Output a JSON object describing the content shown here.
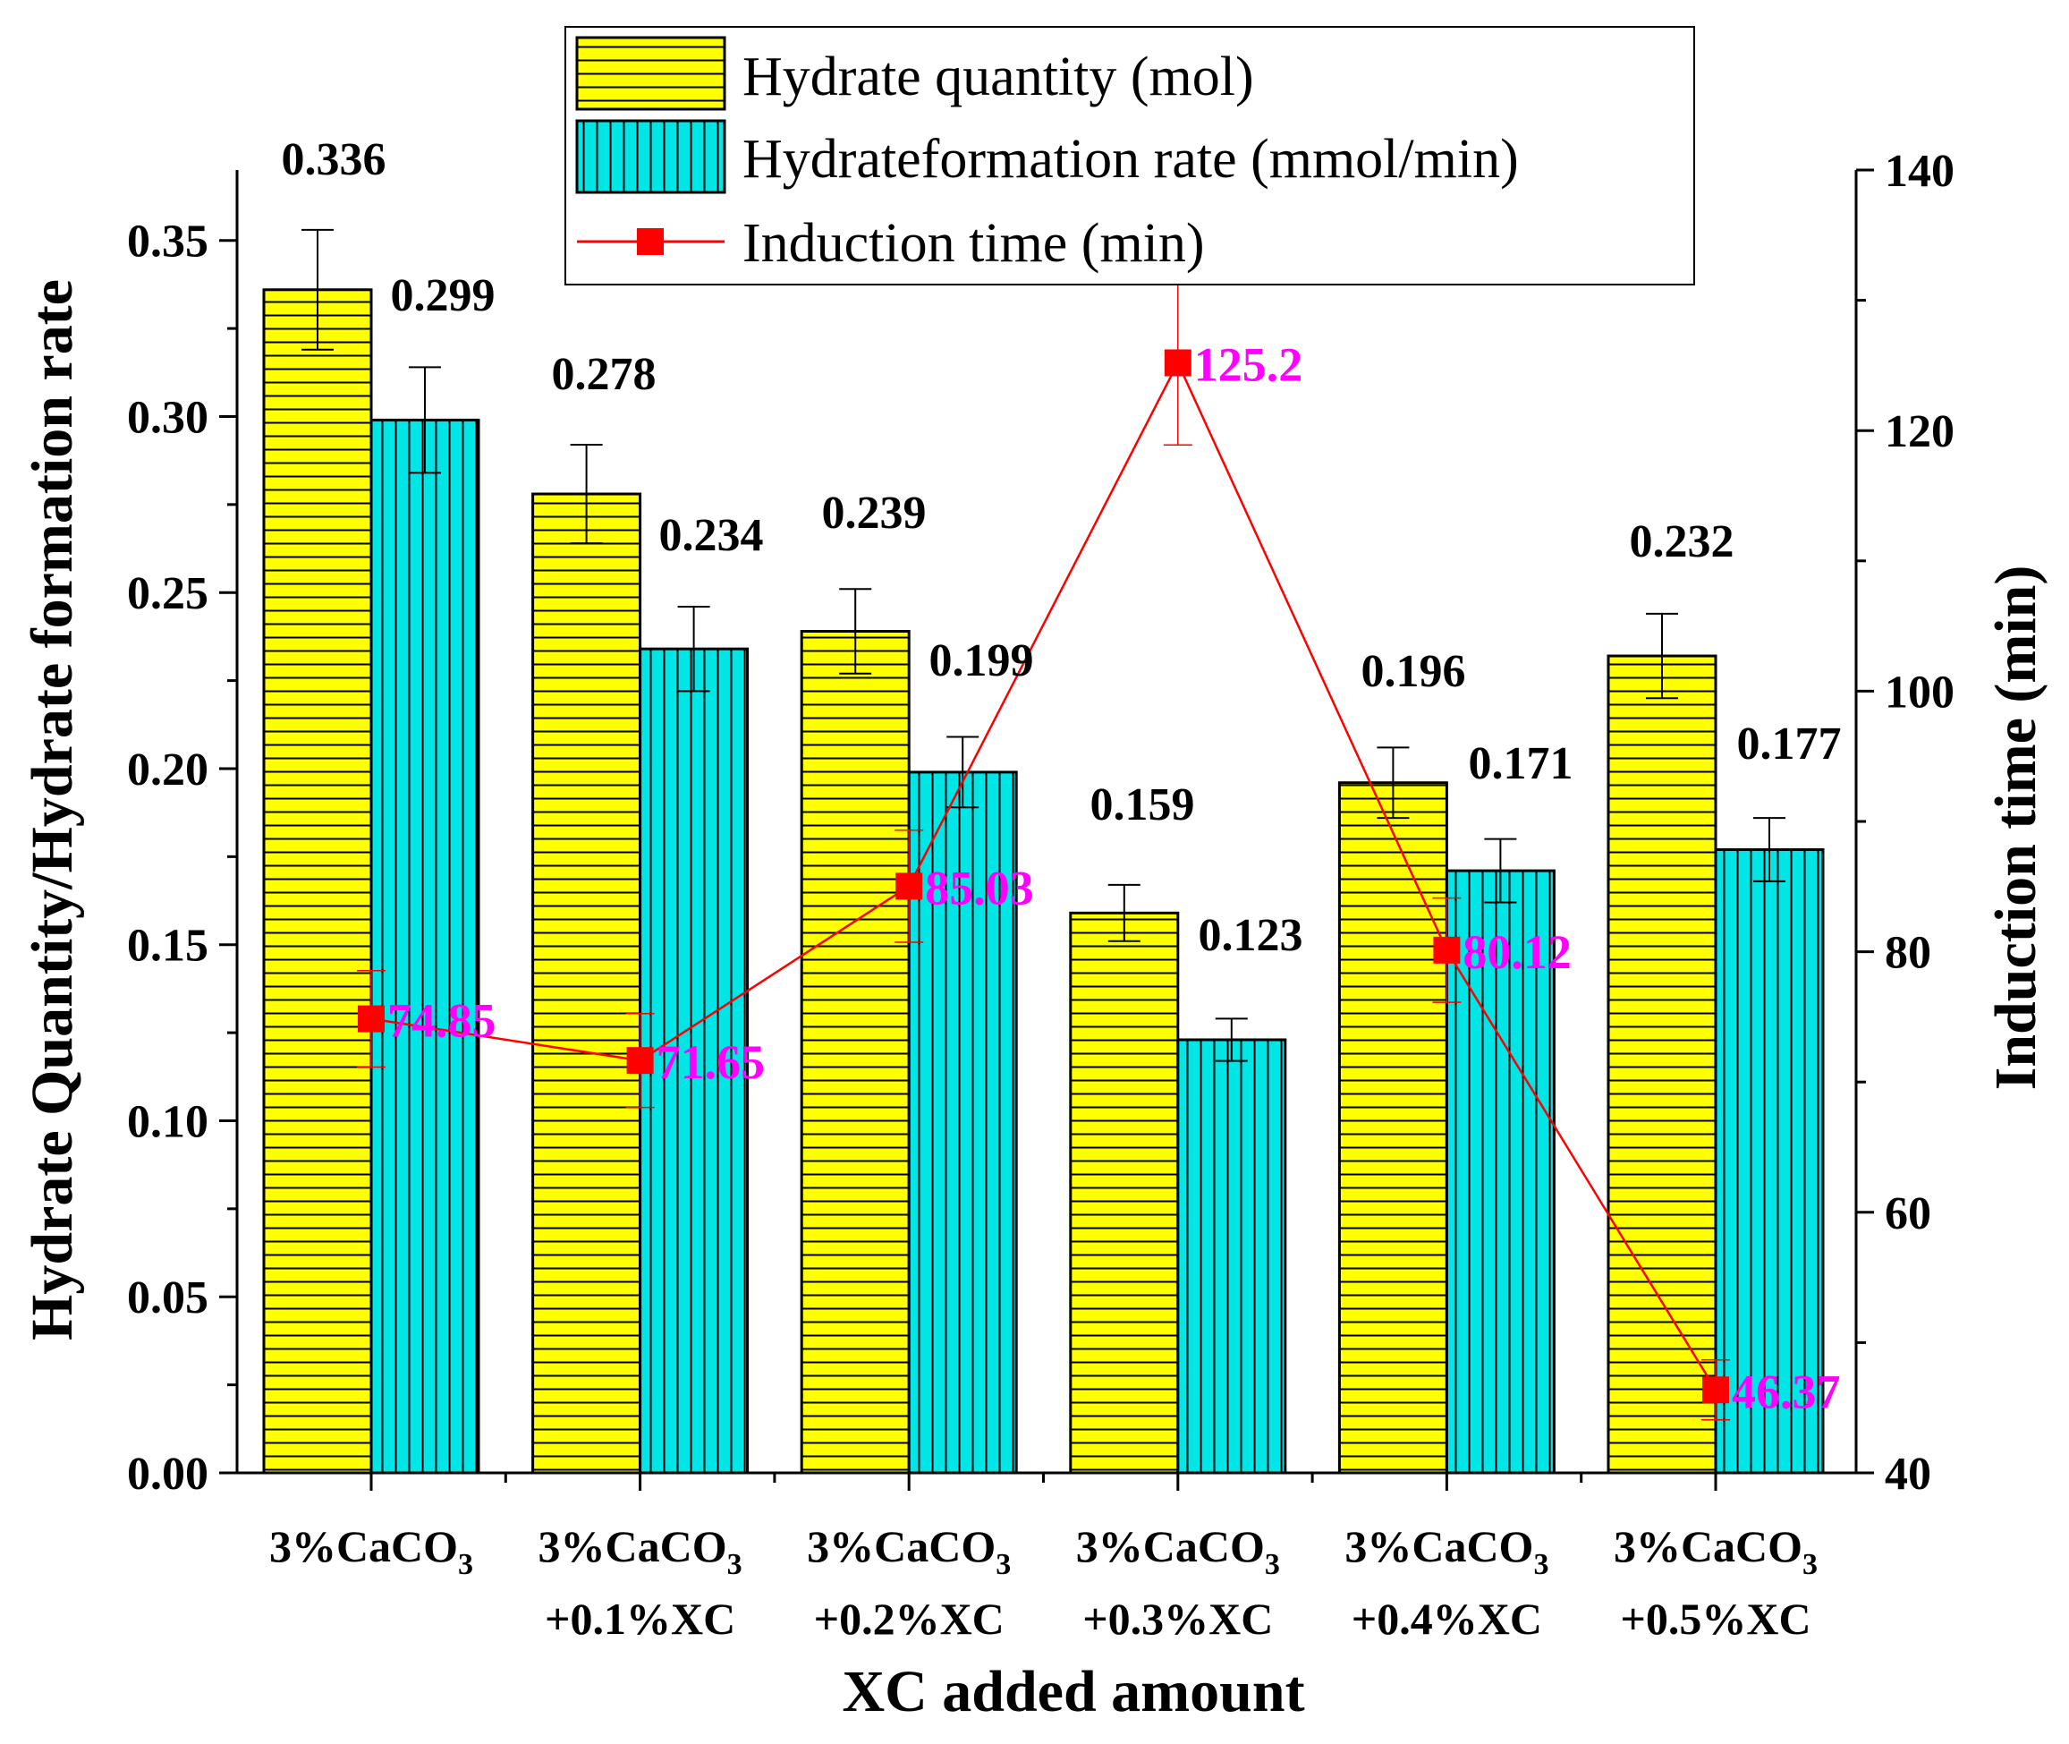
{
  "chart_data": {
    "type": "bar",
    "title": "",
    "xlabel": "XC added amount",
    "ylabel_left": "Hydrate Quantity/Hydrate formation rate",
    "ylabel_right": "Induction time (min)",
    "categories": [
      {
        "line1": "3%CaCO",
        "sub": "3",
        "line2": ""
      },
      {
        "line1": "3%CaCO",
        "sub": "3",
        "line2": "+0.1%XC"
      },
      {
        "line1": "3%CaCO",
        "sub": "3",
        "line2": "+0.2%XC"
      },
      {
        "line1": "3%CaCO",
        "sub": "3",
        "line2": "+0.3%XC"
      },
      {
        "line1": "3%CaCO",
        "sub": "3",
        "line2": "+0.4%XC"
      },
      {
        "line1": "3%CaCO",
        "sub": "3",
        "line2": "+0.5%XC"
      }
    ],
    "ylim_left": [
      0,
      0.37
    ],
    "yticks_left": [
      "0.00",
      "0.05",
      "0.10",
      "0.15",
      "0.20",
      "0.25",
      "0.30",
      "0.35"
    ],
    "ylim_right": [
      40,
      140
    ],
    "yticks_right": [
      "40",
      "60",
      "80",
      "100",
      "120",
      "140"
    ],
    "series": [
      {
        "name": "Hydrate quantity (mol)",
        "axis": "left",
        "kind": "bar",
        "color": "#ffff00",
        "pattern": "horizontal-lines",
        "values": [
          0.336,
          0.278,
          0.239,
          0.159,
          0.196,
          0.232
        ],
        "labels": [
          "0.336",
          "0.278",
          "0.239",
          "0.159",
          "0.196",
          "0.232"
        ],
        "errors": [
          0.017,
          0.014,
          0.012,
          0.008,
          0.01,
          0.012
        ]
      },
      {
        "name": "Hydrateformation rate (mmol/min)",
        "axis": "left",
        "kind": "bar",
        "color": "#00e5e5",
        "pattern": "vertical-lines",
        "values": [
          0.299,
          0.234,
          0.199,
          0.123,
          0.171,
          0.177
        ],
        "labels": [
          "0.299",
          "0.234",
          "0.199",
          "0.123",
          "0.171",
          "0.177"
        ],
        "errors": [
          0.015,
          0.012,
          0.01,
          0.006,
          0.009,
          0.009
        ]
      },
      {
        "name": "Induction time (min)",
        "axis": "right",
        "kind": "line",
        "color": "#ff0000",
        "label_color": "#ff00ff",
        "values": [
          74.85,
          71.65,
          85.03,
          125.2,
          80.12,
          46.37
        ],
        "labels": [
          "74.85",
          "71.65",
          "85.03",
          "125.2",
          "80.12",
          "46.37"
        ],
        "errors": [
          3.7,
          3.6,
          4.3,
          6.3,
          4.0,
          2.3
        ]
      }
    ],
    "legend_position": "top-center",
    "grid": false
  }
}
